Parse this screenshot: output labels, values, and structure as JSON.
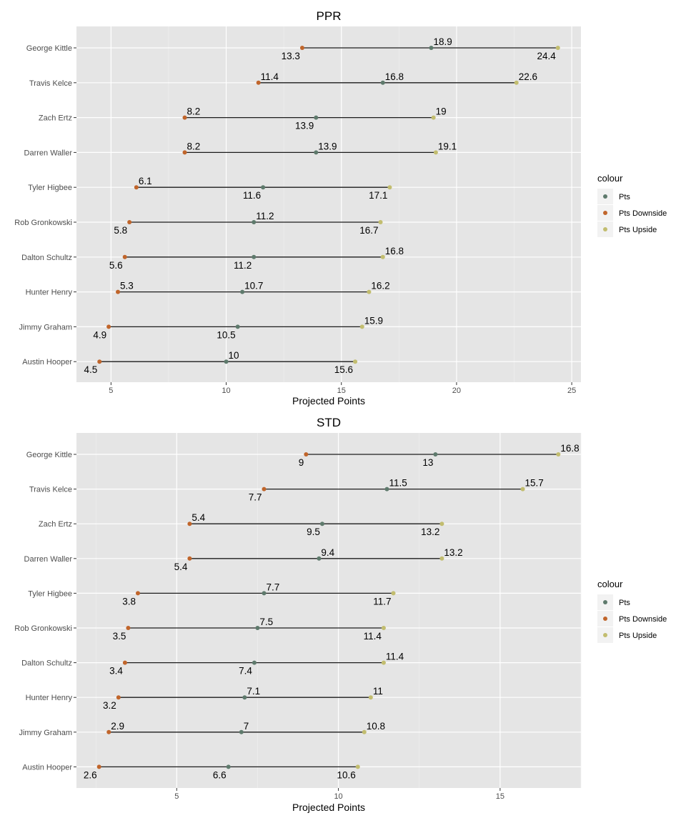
{
  "chart_data": [
    {
      "type": "dumbbell",
      "title": "PPR",
      "xlabel": "Projected Points",
      "ylabel": "",
      "xlim": [
        3.5,
        25.4
      ],
      "x_ticks": [
        5,
        10,
        15,
        20,
        25
      ],
      "grid": true,
      "legend": {
        "title": "colour",
        "position": "right",
        "entries": [
          {
            "name": "Pts",
            "color": "#5e7a6c"
          },
          {
            "name": "Pts Downside",
            "color": "#c0652b"
          },
          {
            "name": "Pts Upside",
            "color": "#c2bd6f"
          }
        ]
      },
      "categories": [
        "George Kittle",
        "Travis Kelce",
        "Zach Ertz",
        "Darren Waller",
        "Tyler Higbee",
        "Rob Gronkowski",
        "Dalton Schultz",
        "Hunter Henry",
        "Jimmy Graham",
        "Austin Hooper"
      ],
      "series": [
        {
          "name": "Pts",
          "values": [
            18.9,
            16.8,
            13.9,
            13.9,
            11.6,
            11.2,
            11.2,
            10.7,
            10.5,
            10
          ]
        },
        {
          "name": "Pts Downside",
          "values": [
            13.3,
            11.4,
            8.2,
            8.2,
            6.1,
            5.8,
            5.6,
            5.3,
            4.9,
            4.5
          ]
        },
        {
          "name": "Pts Upside",
          "values": [
            24.4,
            22.6,
            19,
            19.1,
            17.1,
            16.7,
            16.8,
            16.2,
            15.9,
            15.6
          ]
        }
      ],
      "label_text": {
        "Pts": [
          "18.9",
          "16.8",
          "13.9",
          "13.9",
          "11.6",
          "11.2",
          "11.2",
          "10.7",
          "10.5",
          "10"
        ],
        "Pts Downside": [
          "13.3",
          "11.4",
          "8.2",
          "8.2",
          "6.1",
          "5.8",
          "5.6",
          "5.3",
          "4.9",
          "4.5"
        ],
        "Pts Upside": [
          "24.4",
          "22.6",
          "19",
          "19.1",
          "17.1",
          "16.7",
          "16.8",
          "16.2",
          "15.9",
          "15.6"
        ]
      },
      "label_placement": {
        "Pts": [
          "above",
          "above",
          "below",
          "above",
          "below",
          "above",
          "below",
          "above",
          "below",
          "above"
        ],
        "Pts Downside": [
          "below",
          "above",
          "above",
          "above",
          "above",
          "below",
          "below",
          "above",
          "below",
          "below"
        ],
        "Pts Upside": [
          "below",
          "above",
          "above",
          "above",
          "below",
          "below",
          "above",
          "above",
          "above",
          "below"
        ]
      }
    },
    {
      "type": "dumbbell",
      "title": "STD",
      "xlabel": "Projected Points",
      "ylabel": "",
      "xlim": [
        1.9,
        17.5
      ],
      "x_ticks": [
        5,
        10,
        15
      ],
      "grid": true,
      "legend": {
        "title": "colour",
        "position": "right",
        "entries": [
          {
            "name": "Pts",
            "color": "#5e7a6c"
          },
          {
            "name": "Pts Downside",
            "color": "#c0652b"
          },
          {
            "name": "Pts Upside",
            "color": "#c2bd6f"
          }
        ]
      },
      "categories": [
        "George Kittle",
        "Travis Kelce",
        "Zach Ertz",
        "Darren Waller",
        "Tyler Higbee",
        "Rob Gronkowski",
        "Dalton Schultz",
        "Hunter Henry",
        "Jimmy Graham",
        "Austin Hooper"
      ],
      "series": [
        {
          "name": "Pts",
          "values": [
            13,
            11.5,
            9.5,
            9.4,
            7.7,
            7.5,
            7.4,
            7.1,
            7,
            6.6
          ]
        },
        {
          "name": "Pts Downside",
          "values": [
            9,
            7.7,
            5.4,
            5.4,
            3.8,
            3.5,
            3.4,
            3.2,
            2.9,
            2.6
          ]
        },
        {
          "name": "Pts Upside",
          "values": [
            16.8,
            15.7,
            13.2,
            13.2,
            11.7,
            11.4,
            11.4,
            11,
            10.8,
            10.6
          ]
        }
      ],
      "label_text": {
        "Pts": [
          "13",
          "11.5",
          "9.5",
          "9.4",
          "7.7",
          "7.5",
          "7.4",
          "7.1",
          "7",
          "6.6"
        ],
        "Pts Downside": [
          "9",
          "7.7",
          "5.4",
          "5.4",
          "3.8",
          "3.5",
          "3.4",
          "3.2",
          "2.9",
          "2.6"
        ],
        "Pts Upside": [
          "16.8",
          "15.7",
          "13.2",
          "13.2",
          "11.7",
          "11.4",
          "11.4",
          "11",
          "10.8",
          "10.6"
        ]
      },
      "label_placement": {
        "Pts": [
          "below",
          "above",
          "below",
          "above",
          "above",
          "above",
          "below",
          "above",
          "above",
          "below"
        ],
        "Pts Downside": [
          "below",
          "below",
          "above",
          "below",
          "below",
          "below",
          "below",
          "below",
          "above",
          "below"
        ],
        "Pts Upside": [
          "above",
          "above",
          "below",
          "above",
          "below",
          "below",
          "above",
          "above",
          "above",
          "below"
        ]
      }
    }
  ]
}
